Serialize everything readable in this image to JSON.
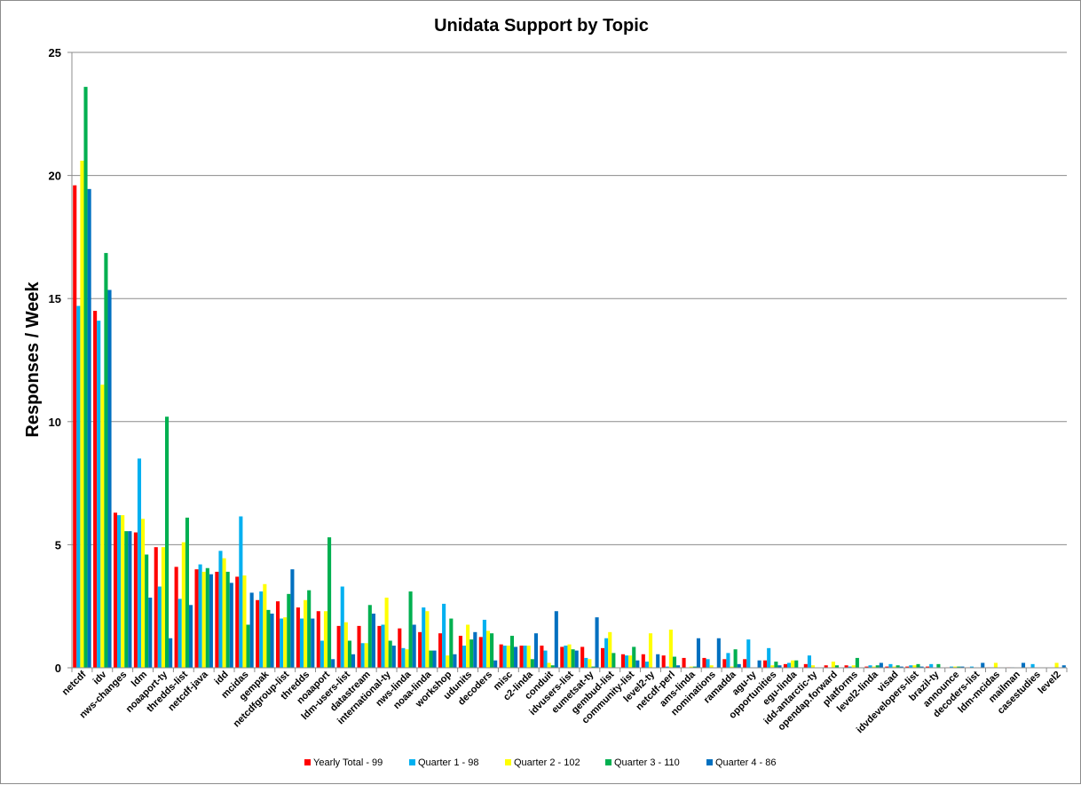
{
  "chart_data": {
    "type": "bar",
    "title": "Unidata Support by Topic",
    "ylabel": "Responses / Week",
    "xlabel": "",
    "ylim": [
      0,
      25
    ],
    "yticks": [
      0,
      5,
      10,
      15,
      20,
      25
    ],
    "grid": true,
    "legend_position": "bottom",
    "categories": [
      "netcdf",
      "idv",
      "nws-changes",
      "ldm",
      "noaaport-ty",
      "thredds-list",
      "netcdf-java",
      "idd",
      "mcidas",
      "gempak",
      "netcdfgroup-list",
      "thredds",
      "noaaport",
      "ldm-users-list",
      "datastream",
      "international-ty",
      "nws-linda",
      "noaa-linda",
      "workshop",
      "udunits",
      "decoders",
      "misc",
      "c2-linda",
      "conduit",
      "idvusers-list",
      "eumetsat-ty",
      "gembud-list",
      "community-list",
      "level2-ty",
      "netcdf-perl",
      "ams-linda",
      "nominations",
      "ramadda",
      "agu-ty",
      "opportunities",
      "egu-linda",
      "idd-antarctic-ty",
      "opendap.forward",
      "platforms",
      "level2-linda",
      "visad",
      "idvdevelopers-list",
      "brazil-ty",
      "announce",
      "decoders-list",
      "ldm-mcidas",
      "mailman",
      "casestudies",
      "level2"
    ],
    "series": [
      {
        "name": "Yearly Total  - 99",
        "color": "#ff0000",
        "values": [
          19.6,
          14.5,
          6.3,
          5.5,
          4.9,
          4.1,
          4.0,
          3.9,
          3.7,
          2.75,
          2.7,
          2.45,
          2.3,
          1.7,
          1.7,
          1.7,
          1.6,
          1.45,
          1.4,
          1.3,
          1.25,
          0.95,
          0.9,
          0.9,
          0.85,
          0.85,
          0.8,
          0.55,
          0.55,
          0.5,
          0.4,
          0.4,
          0.35,
          0.35,
          0.3,
          0.15,
          0.15,
          0.1,
          0.1,
          0.05,
          0.05,
          0.05,
          0.05,
          0.02,
          0.02,
          0.02,
          0.02,
          0.0,
          0.0
        ]
      },
      {
        "name": "Quarter 1 - 98",
        "color": "#00b0f0",
        "values": [
          14.7,
          14.1,
          6.2,
          8.5,
          3.3,
          2.8,
          4.2,
          4.75,
          6.15,
          3.1,
          2.0,
          2.0,
          1.1,
          3.3,
          1.0,
          1.75,
          0.8,
          2.45,
          2.6,
          0.9,
          1.95,
          0.9,
          0.9,
          0.7,
          0.9,
          0.4,
          1.2,
          0.5,
          0.25,
          0.05,
          0.0,
          0.35,
          0.6,
          1.15,
          0.8,
          0.2,
          0.5,
          0.0,
          0.05,
          0.1,
          0.15,
          0.1,
          0.15,
          0.05,
          0.05,
          0.02,
          0.02,
          0.15,
          0.0
        ]
      },
      {
        "name": "Quarter 2 - 102",
        "color": "#ffff00",
        "values": [
          20.6,
          11.5,
          6.2,
          6.05,
          4.9,
          5.1,
          3.9,
          4.45,
          3.75,
          3.4,
          2.05,
          2.75,
          2.3,
          1.85,
          1.0,
          2.85,
          0.75,
          2.3,
          0.5,
          1.75,
          1.5,
          0.9,
          0.9,
          0.2,
          0.95,
          0.35,
          1.45,
          0.5,
          1.4,
          1.55,
          0.05,
          0.1,
          0.05,
          0.0,
          0.1,
          0.3,
          0.1,
          0.25,
          0.1,
          0.05,
          0.05,
          0.1,
          0.0,
          0.05,
          0.0,
          0.2,
          0.0,
          0.0,
          0.2
        ]
      },
      {
        "name": "Quarter 3 - 110",
        "color": "#00b050",
        "values": [
          23.6,
          16.85,
          5.55,
          4.6,
          10.2,
          6.1,
          4.05,
          3.9,
          1.75,
          2.35,
          3.0,
          3.15,
          5.3,
          1.1,
          2.55,
          1.1,
          3.1,
          0.7,
          2.0,
          1.15,
          1.4,
          1.3,
          0.35,
          0.1,
          0.75,
          0.05,
          0.6,
          0.85,
          0.0,
          0.45,
          0.05,
          0.0,
          0.75,
          0.0,
          0.25,
          0.3,
          0.0,
          0.1,
          0.4,
          0.1,
          0.1,
          0.15,
          0.15,
          0.05,
          0.0,
          0.0,
          0.0,
          0.0,
          0.0
        ]
      },
      {
        "name": "Quarter 4 - 86",
        "color": "#0070c0",
        "values": [
          19.45,
          15.35,
          5.55,
          2.85,
          1.2,
          2.55,
          3.8,
          3.45,
          3.05,
          2.2,
          4.0,
          2.0,
          0.35,
          0.55,
          2.2,
          0.9,
          1.75,
          0.7,
          0.55,
          1.45,
          0.3,
          0.85,
          1.4,
          2.3,
          0.7,
          2.05,
          0.0,
          0.3,
          0.55,
          0.1,
          1.2,
          1.2,
          0.15,
          0.3,
          0.1,
          0.0,
          0.0,
          0.0,
          0.0,
          0.2,
          0.05,
          0.05,
          0.0,
          0.05,
          0.2,
          0.0,
          0.2,
          0.0,
          0.1
        ]
      }
    ]
  }
}
